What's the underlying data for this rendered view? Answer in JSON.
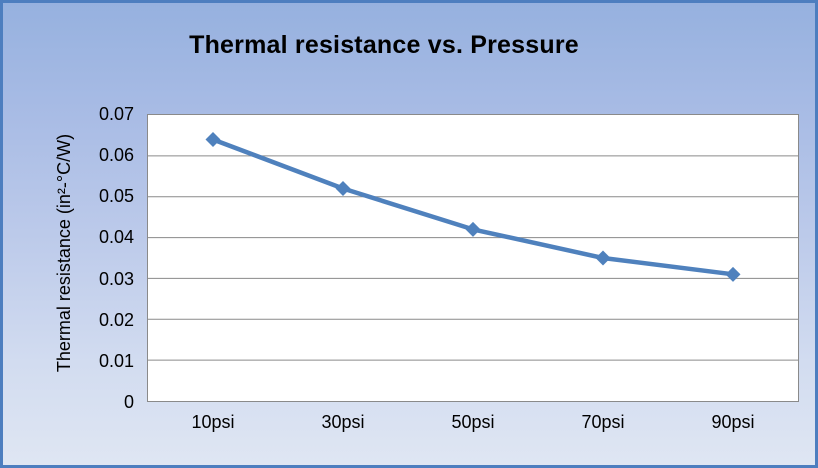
{
  "chart": {
    "title": "Thermal resistance vs. Pressure",
    "y_axis_title": "Thermal resistance (in²-°C/W)"
  },
  "chart_data": {
    "type": "line",
    "title": "Thermal resistance vs. Pressure",
    "categories": [
      "10psi",
      "30psi",
      "50psi",
      "70psi",
      "90psi"
    ],
    "values": [
      0.064,
      0.052,
      0.042,
      0.035,
      0.031
    ],
    "xlabel": "",
    "ylabel": "Thermal resistance (in²-°C/W)",
    "ylim": [
      0,
      0.07
    ],
    "ytick_step": 0.01,
    "ytick_labels": [
      "0.07",
      "0.06",
      "0.05",
      "0.04",
      "0.03",
      "0.02",
      "0.01",
      "0"
    ],
    "grid": true,
    "legend": false,
    "marker": "diamond"
  },
  "colors": {
    "series_line": "#4f81bd",
    "marker_fill": "#4f81bd",
    "gridline": "#8a8a8a",
    "chart_border": "#4d7ebf",
    "plot_background": "#ffffff",
    "background_top": "#96b1df",
    "background_bottom": "#dfe6f3",
    "text": "#000000"
  }
}
